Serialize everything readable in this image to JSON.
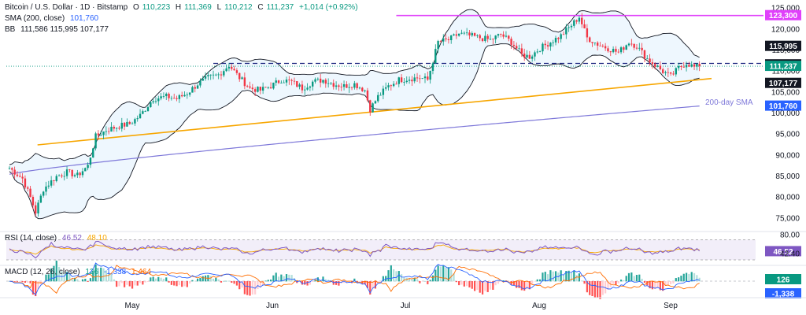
{
  "header": {
    "symbol": "Bitcoin / U.S. Dollar · 1D · Bitstamp",
    "open_label": "O",
    "open": "110,223",
    "high_label": "H",
    "high": "111,369",
    "low_label": "L",
    "low": "110,212",
    "close_label": "C",
    "close": "111,237",
    "change": "+1,014 (+0.92%)",
    "sma_label": "SMA (200, close)",
    "sma_value": "101,760",
    "bb_label": "BB",
    "bb_values": "111,586  115,995  107,177",
    "rsi_label": "RSI (14, close)",
    "rsi_value": "46.52",
    "rsi_ma": "48.10",
    "macd_label": "MACD (12, 26, close)",
    "macd_value": "126",
    "macd_signal": "-1,338",
    "macd_hist": "1,464"
  },
  "annotations": {
    "sma_label": "200-day SMA"
  },
  "colors": {
    "up": "#089981",
    "down": "#f23645",
    "bb": "#131722",
    "bb_fill": "#e3f2fd",
    "sma": "#7e78d9",
    "trend": "#f7a600",
    "resistance": "#e040fb",
    "dashed": "#1a237e",
    "rsi": "#7e57c2",
    "rsi_ma": "#f7a600",
    "macd": "#2962ff",
    "signal": "#ff6d00"
  },
  "chart_data": {
    "type": "candlestick",
    "ylim": [
      73000,
      125500
    ],
    "y_ticks": [
      "125,000",
      "120,000",
      "115,000",
      "110,000",
      "105,000",
      "100,000",
      "95,000",
      "90,000",
      "85,000",
      "80,000",
      "75,000"
    ],
    "x_ticks": [
      "May",
      "Jun",
      "Jul",
      "Aug",
      "Sep"
    ],
    "price_labels": [
      {
        "value": "123,300",
        "color": "#e040fb",
        "price": 123300
      },
      {
        "value": "115,995",
        "color": "#131722",
        "price": 115995
      },
      {
        "value": "111,586",
        "color": "#131722",
        "price": 111586
      },
      {
        "value": "111,237",
        "color": "#089981",
        "price": 111237
      },
      {
        "value": "107,177",
        "color": "#131722",
        "price": 107177
      },
      {
        "value": "101,760",
        "color": "#2962ff",
        "price": 101760
      }
    ],
    "resistance": 123300,
    "dashed_level": 111900,
    "trendline": [
      [
        92500,
        0.04
      ],
      [
        108300,
        0.9
      ]
    ],
    "rsi": {
      "ylim": [
        30,
        80
      ],
      "ticks": [
        "80.00",
        "46.52",
        "42.40"
      ],
      "upper": 70,
      "lower": 30
    },
    "macd": {
      "ticks": [
        "126",
        "-1,338"
      ]
    }
  }
}
